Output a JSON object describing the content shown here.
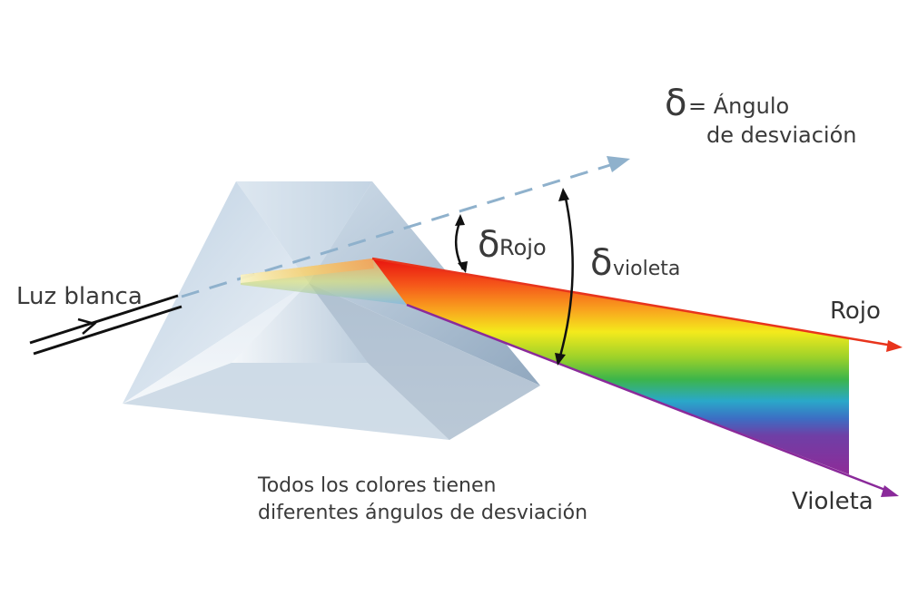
{
  "labels": {
    "white_light": "Luz blanca",
    "delta_symbol": "δ",
    "delta_def_line1": "= Ángulo",
    "delta_def_line2": "de desviación",
    "delta_red_symbol": "δ",
    "delta_red_sub": "Rojo",
    "delta_violet_symbol": "δ",
    "delta_violet_sub": "violeta",
    "red_ray": "Rojo",
    "violet_ray": "Violeta",
    "caption_line1": "Todos los colores tienen",
    "caption_line2": "diferentes ángulos de desviación"
  },
  "colors": {
    "red": "#e8341c",
    "violet": "#8a2a9a",
    "dashed_ray": "#8fb1cc",
    "prism_light": "#e9f0f7",
    "prism_dark": "#8fa8c0"
  }
}
